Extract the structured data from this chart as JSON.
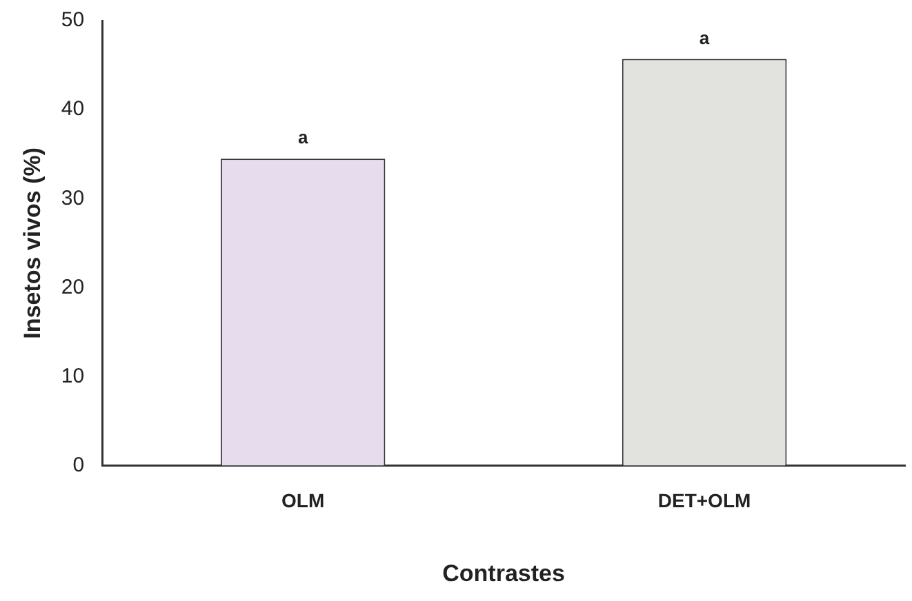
{
  "chart_data": {
    "type": "bar",
    "xlabel": "Contrastes",
    "ylabel": "Insetos vivos (%)",
    "categories": [
      "OLM",
      "DET+OLM"
    ],
    "values": [
      34.5,
      45.7
    ],
    "colors": [
      "#e6dcee",
      "#e2e2df"
    ],
    "ylim": [
      0,
      50
    ],
    "yticks": [
      0,
      10,
      20,
      30,
      40,
      50
    ],
    "grid": false,
    "legend": false,
    "annotations": [
      {
        "text": "a",
        "x": "OLM",
        "y": 34.5
      },
      {
        "text": "a",
        "x": "DET+OLM",
        "y": 45.7
      }
    ]
  }
}
